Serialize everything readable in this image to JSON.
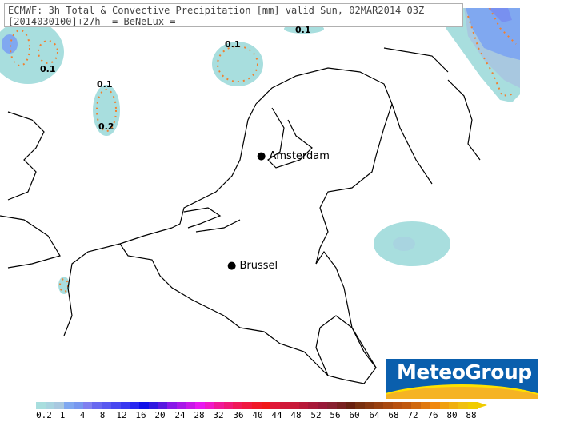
{
  "title": {
    "line1": "ECMWF: 3h Total & Convective Precipitation [mm] valid Sun, 02MAR2014 03Z",
    "line2": "[2014030100]+27h -= BeNeLux =-"
  },
  "cities": [
    {
      "name": "Amsterdam"
    },
    {
      "name": "Brussel"
    }
  ],
  "contour_labels": [
    "0.1",
    "0.1",
    "0.1",
    "0.1",
    "0.2",
    "0.1"
  ],
  "logo": {
    "text": "MeteoGroup"
  },
  "legend": {
    "labels": [
      "0.2",
      "1",
      "4",
      "8",
      "12",
      "16",
      "20",
      "24",
      "28",
      "32",
      "36",
      "40",
      "44",
      "48",
      "52",
      "56",
      "60",
      "64",
      "68",
      "72",
      "76",
      "80",
      "88"
    ],
    "colors": [
      "#a8dede",
      "#a8d4e0",
      "#a8c8e0",
      "#80a8f0",
      "#7898f0",
      "#8080f0",
      "#6868f0",
      "#5858f0",
      "#4848f0",
      "#3838f0",
      "#2828f0",
      "#1010e8",
      "#3018e0",
      "#5818e0",
      "#8818e8",
      "#a818e8",
      "#c818e8",
      "#e818f0",
      "#f018c8",
      "#f01898",
      "#f01878",
      "#f01858",
      "#f01840",
      "#f01828",
      "#f01818",
      "#e01838",
      "#d01838",
      "#c81838",
      "#b81838",
      "#a81838",
      "#981838",
      "#882030",
      "#782020",
      "#682010",
      "#783010",
      "#883810",
      "#984010",
      "#a84810",
      "#b85010",
      "#c05810",
      "#d06810",
      "#e07810",
      "#f08810",
      "#f0a010",
      "#f0b010",
      "#f0c010",
      "#f0cc00"
    ]
  },
  "colors": {
    "precip_light": "#a8dede",
    "precip_mid": "#a8c8e0",
    "precip_blue": "#80a8f0",
    "contour": "#f08030"
  }
}
